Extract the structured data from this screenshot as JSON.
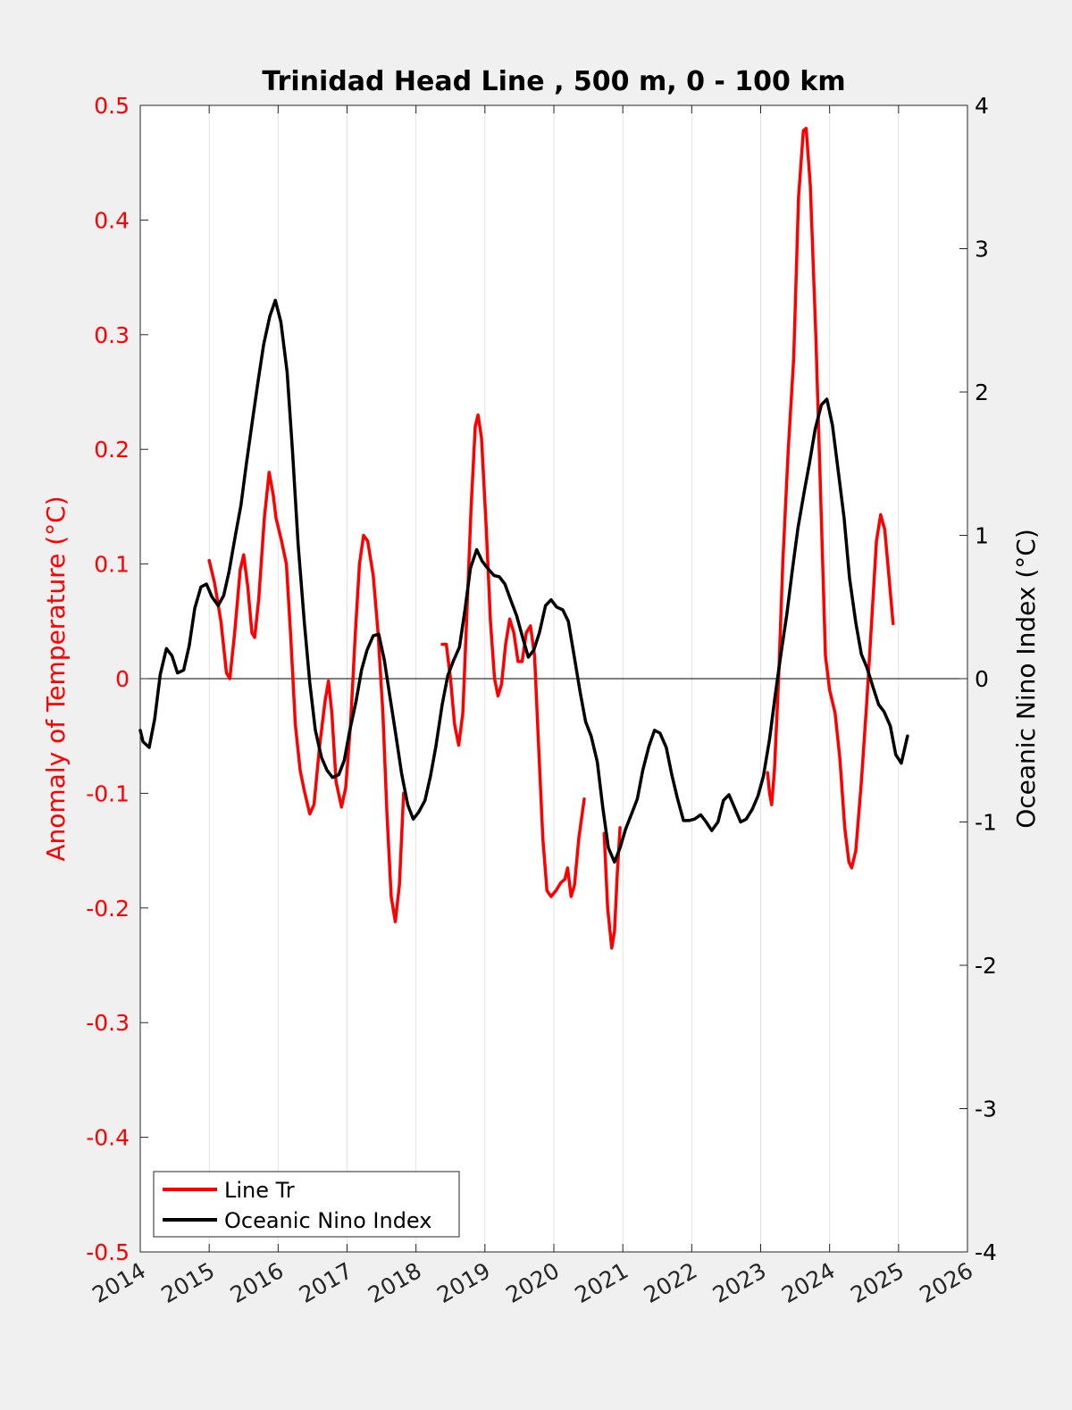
{
  "chart_data": {
    "type": "line",
    "title": "Trinidad Head Line , 500 m, 0 - 100 km",
    "xlabel": "",
    "ylabel_left": "Anomaly of Temperature (°C)",
    "ylabel_right": "Oceanic Nino Index (°C)",
    "xlim": [
      2014,
      2026
    ],
    "ylim_left": [
      -0.5,
      0.5
    ],
    "ylim_right": [
      -4,
      4
    ],
    "x_ticks": [
      "2014",
      "2015",
      "2016",
      "2017",
      "2018",
      "2019",
      "2020",
      "2021",
      "2022",
      "2023",
      "2024",
      "2025",
      "2026"
    ],
    "y_left_ticks": [
      "0.5",
      "0.4",
      "0.3",
      "0.2",
      "0.1",
      "0",
      "-0.1",
      "-0.2",
      "-0.3",
      "-0.4",
      "-0.5"
    ],
    "y_right_ticks": [
      "4",
      "3",
      "2",
      "1",
      "0",
      "-1",
      "-2",
      "-3",
      "-4"
    ],
    "grid": "vertical",
    "legend_position": "bottom-left",
    "colors": {
      "line_tr": "#ff0000",
      "oni": "#000000",
      "left_axis": "#ff0000",
      "right_axis": "#000000"
    },
    "series": [
      {
        "name": "Line Tr",
        "axis": "left",
        "segments": [
          [
            [
              2015.0,
              0.103
            ],
            [
              2015.08,
              0.083
            ],
            [
              2015.17,
              0.05
            ],
            [
              2015.25,
              0.005
            ],
            [
              2015.3,
              0.0
            ],
            [
              2015.37,
              0.04
            ],
            [
              2015.45,
              0.095
            ],
            [
              2015.5,
              0.108
            ],
            [
              2015.56,
              0.08
            ],
            [
              2015.62,
              0.04
            ],
            [
              2015.66,
              0.036
            ],
            [
              2015.72,
              0.07
            ],
            [
              2015.8,
              0.14
            ],
            [
              2015.87,
              0.18
            ],
            [
              2015.93,
              0.16
            ],
            [
              2015.97,
              0.14
            ],
            [
              2016.05,
              0.12
            ],
            [
              2016.12,
              0.1
            ],
            [
              2016.18,
              0.04
            ],
            [
              2016.25,
              -0.04
            ],
            [
              2016.32,
              -0.08
            ],
            [
              2016.38,
              -0.098
            ],
            [
              2016.46,
              -0.118
            ],
            [
              2016.52,
              -0.11
            ],
            [
              2016.6,
              -0.06
            ],
            [
              2016.68,
              -0.02
            ],
            [
              2016.73,
              -0.002
            ],
            [
              2016.78,
              -0.03
            ],
            [
              2016.84,
              -0.09
            ],
            [
              2016.92,
              -0.112
            ],
            [
              2016.98,
              -0.095
            ],
            [
              2017.05,
              -0.04
            ],
            [
              2017.12,
              0.04
            ],
            [
              2017.18,
              0.1
            ],
            [
              2017.24,
              0.125
            ],
            [
              2017.3,
              0.12
            ],
            [
              2017.38,
              0.09
            ],
            [
              2017.45,
              0.04
            ],
            [
              2017.52,
              -0.03
            ],
            [
              2017.58,
              -0.12
            ],
            [
              2017.64,
              -0.19
            ],
            [
              2017.7,
              -0.212
            ],
            [
              2017.76,
              -0.18
            ],
            [
              2017.82,
              -0.1
            ]
          ],
          [
            [
              2018.38,
              0.03
            ],
            [
              2018.44,
              0.03
            ],
            [
              2018.5,
              0.0
            ],
            [
              2018.56,
              -0.04
            ],
            [
              2018.62,
              -0.058
            ],
            [
              2018.68,
              -0.03
            ],
            [
              2018.74,
              0.06
            ],
            [
              2018.8,
              0.15
            ],
            [
              2018.86,
              0.22
            ],
            [
              2018.9,
              0.23
            ],
            [
              2018.95,
              0.21
            ],
            [
              2019.02,
              0.13
            ],
            [
              2019.08,
              0.05
            ],
            [
              2019.14,
              0.0
            ],
            [
              2019.19,
              -0.015
            ],
            [
              2019.24,
              -0.005
            ],
            [
              2019.3,
              0.03
            ],
            [
              2019.36,
              0.052
            ],
            [
              2019.42,
              0.04
            ],
            [
              2019.48,
              0.015
            ],
            [
              2019.54,
              0.015
            ],
            [
              2019.6,
              0.04
            ],
            [
              2019.66,
              0.046
            ],
            [
              2019.72,
              0.02
            ],
            [
              2019.78,
              -0.06
            ],
            [
              2019.84,
              -0.14
            ],
            [
              2019.9,
              -0.185
            ],
            [
              2019.96,
              -0.19
            ],
            [
              2020.03,
              -0.185
            ],
            [
              2020.1,
              -0.178
            ],
            [
              2020.16,
              -0.175
            ],
            [
              2020.2,
              -0.165
            ],
            [
              2020.25,
              -0.19
            ],
            [
              2020.3,
              -0.18
            ],
            [
              2020.36,
              -0.14
            ],
            [
              2020.44,
              -0.105
            ]
          ],
          [
            [
              2020.73,
              -0.135
            ],
            [
              2020.78,
              -0.2
            ],
            [
              2020.84,
              -0.235
            ],
            [
              2020.88,
              -0.22
            ],
            [
              2020.92,
              -0.17
            ],
            [
              2020.96,
              -0.13
            ]
          ],
          [
            [
              2023.1,
              -0.082
            ],
            [
              2023.13,
              -0.1
            ],
            [
              2023.16,
              -0.11
            ],
            [
              2023.2,
              -0.08
            ],
            [
              2023.26,
              0.0
            ],
            [
              2023.32,
              0.1
            ],
            [
              2023.4,
              0.2
            ],
            [
              2023.48,
              0.28
            ],
            [
              2023.55,
              0.42
            ],
            [
              2023.62,
              0.478
            ],
            [
              2023.66,
              0.48
            ],
            [
              2023.72,
              0.43
            ],
            [
              2023.8,
              0.3
            ],
            [
              2023.88,
              0.14
            ],
            [
              2023.94,
              0.02
            ],
            [
              2024.0,
              -0.01
            ],
            [
              2024.08,
              -0.03
            ],
            [
              2024.15,
              -0.07
            ],
            [
              2024.22,
              -0.13
            ],
            [
              2024.28,
              -0.16
            ],
            [
              2024.32,
              -0.165
            ],
            [
              2024.38,
              -0.15
            ],
            [
              2024.46,
              -0.09
            ],
            [
              2024.54,
              -0.02
            ],
            [
              2024.62,
              0.06
            ],
            [
              2024.68,
              0.12
            ],
            [
              2024.74,
              0.143
            ],
            [
              2024.8,
              0.13
            ],
            [
              2024.86,
              0.09
            ],
            [
              2024.92,
              0.048
            ]
          ]
        ]
      },
      {
        "name": "Oceanic Nino Index",
        "axis": "right",
        "segments": [
          [
            [
              2014.0,
              -0.36
            ],
            [
              2014.04,
              -0.44
            ],
            [
              2014.13,
              -0.48
            ],
            [
              2014.21,
              -0.28
            ],
            [
              2014.29,
              0.03
            ],
            [
              2014.38,
              0.21
            ],
            [
              2014.46,
              0.16
            ],
            [
              2014.54,
              0.04
            ],
            [
              2014.63,
              0.06
            ],
            [
              2014.71,
              0.23
            ],
            [
              2014.79,
              0.49
            ],
            [
              2014.88,
              0.64
            ],
            [
              2014.96,
              0.66
            ],
            [
              2015.04,
              0.57
            ],
            [
              2015.13,
              0.51
            ],
            [
              2015.21,
              0.58
            ],
            [
              2015.29,
              0.75
            ],
            [
              2015.38,
              1.0
            ],
            [
              2015.46,
              1.21
            ],
            [
              2015.54,
              1.5
            ],
            [
              2015.63,
              1.81
            ],
            [
              2015.71,
              2.08
            ],
            [
              2015.79,
              2.33
            ],
            [
              2015.88,
              2.53
            ],
            [
              2015.96,
              2.64
            ],
            [
              2016.04,
              2.49
            ],
            [
              2016.13,
              2.14
            ],
            [
              2016.21,
              1.58
            ],
            [
              2016.29,
              0.94
            ],
            [
              2016.38,
              0.39
            ],
            [
              2016.46,
              -0.03
            ],
            [
              2016.54,
              -0.36
            ],
            [
              2016.63,
              -0.55
            ],
            [
              2016.71,
              -0.64
            ],
            [
              2016.79,
              -0.69
            ],
            [
              2016.88,
              -0.67
            ],
            [
              2016.96,
              -0.57
            ],
            [
              2017.04,
              -0.36
            ],
            [
              2017.13,
              -0.16
            ],
            [
              2017.21,
              0.06
            ],
            [
              2017.29,
              0.2
            ],
            [
              2017.38,
              0.3
            ],
            [
              2017.46,
              0.31
            ],
            [
              2017.54,
              0.13
            ],
            [
              2017.63,
              -0.15
            ],
            [
              2017.71,
              -0.4
            ],
            [
              2017.79,
              -0.66
            ],
            [
              2017.88,
              -0.88
            ],
            [
              2017.96,
              -0.98
            ],
            [
              2018.04,
              -0.93
            ],
            [
              2018.13,
              -0.85
            ],
            [
              2018.21,
              -0.68
            ],
            [
              2018.29,
              -0.47
            ],
            [
              2018.38,
              -0.18
            ],
            [
              2018.46,
              0.02
            ],
            [
              2018.54,
              0.12
            ],
            [
              2018.63,
              0.22
            ],
            [
              2018.71,
              0.48
            ],
            [
              2018.79,
              0.77
            ],
            [
              2018.88,
              0.9
            ],
            [
              2018.96,
              0.82
            ],
            [
              2019.04,
              0.77
            ],
            [
              2019.13,
              0.72
            ],
            [
              2019.21,
              0.71
            ],
            [
              2019.29,
              0.66
            ],
            [
              2019.38,
              0.54
            ],
            [
              2019.46,
              0.44
            ],
            [
              2019.54,
              0.3
            ],
            [
              2019.63,
              0.15
            ],
            [
              2019.71,
              0.2
            ],
            [
              2019.79,
              0.32
            ],
            [
              2019.88,
              0.51
            ],
            [
              2019.96,
              0.55
            ],
            [
              2020.04,
              0.5
            ],
            [
              2020.13,
              0.48
            ],
            [
              2020.21,
              0.4
            ],
            [
              2020.29,
              0.17
            ],
            [
              2020.38,
              -0.09
            ],
            [
              2020.46,
              -0.3
            ],
            [
              2020.54,
              -0.4
            ],
            [
              2020.63,
              -0.58
            ],
            [
              2020.71,
              -0.9
            ],
            [
              2020.79,
              -1.18
            ],
            [
              2020.88,
              -1.28
            ],
            [
              2020.96,
              -1.18
            ],
            [
              2021.04,
              -1.05
            ],
            [
              2021.13,
              -0.94
            ],
            [
              2021.21,
              -0.84
            ],
            [
              2021.29,
              -0.64
            ],
            [
              2021.38,
              -0.47
            ],
            [
              2021.46,
              -0.36
            ],
            [
              2021.54,
              -0.38
            ],
            [
              2021.63,
              -0.48
            ],
            [
              2021.71,
              -0.67
            ],
            [
              2021.79,
              -0.83
            ],
            [
              2021.88,
              -0.99
            ],
            [
              2021.96,
              -0.99
            ],
            [
              2022.04,
              -0.98
            ],
            [
              2022.13,
              -0.95
            ],
            [
              2022.21,
              -1.0
            ],
            [
              2022.29,
              -1.06
            ],
            [
              2022.38,
              -1.0
            ],
            [
              2022.46,
              -0.85
            ],
            [
              2022.54,
              -0.81
            ],
            [
              2022.63,
              -0.91
            ],
            [
              2022.71,
              -1.0
            ],
            [
              2022.79,
              -0.98
            ],
            [
              2022.88,
              -0.91
            ],
            [
              2022.96,
              -0.82
            ],
            [
              2023.04,
              -0.68
            ],
            [
              2023.13,
              -0.42
            ],
            [
              2023.21,
              -0.12
            ],
            [
              2023.29,
              0.16
            ],
            [
              2023.38,
              0.45
            ],
            [
              2023.46,
              0.76
            ],
            [
              2023.54,
              1.05
            ],
            [
              2023.63,
              1.3
            ],
            [
              2023.71,
              1.51
            ],
            [
              2023.79,
              1.74
            ],
            [
              2023.88,
              1.91
            ],
            [
              2023.96,
              1.95
            ],
            [
              2024.04,
              1.77
            ],
            [
              2024.13,
              1.43
            ],
            [
              2024.21,
              1.12
            ],
            [
              2024.29,
              0.7
            ],
            [
              2024.38,
              0.39
            ],
            [
              2024.46,
              0.17
            ],
            [
              2024.54,
              0.08
            ],
            [
              2024.63,
              -0.06
            ],
            [
              2024.71,
              -0.18
            ],
            [
              2024.79,
              -0.23
            ],
            [
              2024.88,
              -0.33
            ],
            [
              2024.96,
              -0.53
            ],
            [
              2025.04,
              -0.59
            ],
            [
              2025.13,
              -0.4
            ]
          ]
        ]
      }
    ]
  }
}
